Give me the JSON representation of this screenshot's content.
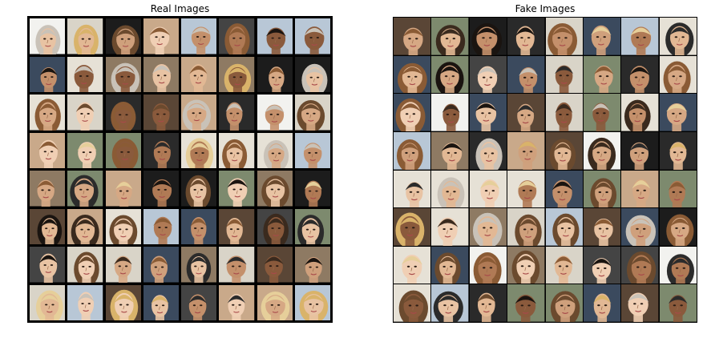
{
  "figure": {
    "real_title": "Real Images",
    "fake_title": "Fake Images"
  },
  "palette": {
    "backgrounds": [
      "#f2f2ef",
      "#2a2a2a",
      "#7d8a6e",
      "#c9a98a",
      "#1c1c1c",
      "#b8c7d6",
      "#5a4636",
      "#d9d4c8",
      "#3b4a5e",
      "#8e7a63",
      "#e6e1d6",
      "#444444"
    ],
    "skins": [
      "#e8c3a3",
      "#d6a884",
      "#c4906b",
      "#f0cfb4",
      "#b07a55",
      "#8a5a3c",
      "#e2b894",
      "#cfa07c"
    ],
    "hairs": [
      "#d9b36a",
      "#3a2a1e",
      "#1a1410",
      "#6b4a2e",
      "#c9c2b8",
      "#8a5b35",
      "#e6cf9a",
      "#2b2b2b"
    ]
  }
}
